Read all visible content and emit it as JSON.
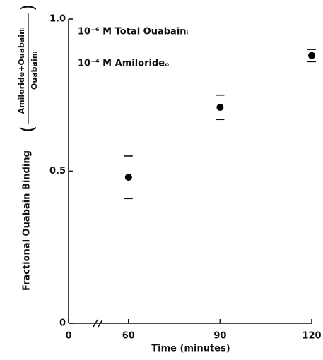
{
  "chart_data": {
    "type": "scatter",
    "xlabel": "Time (minutes)",
    "ylabel": "Fractional Ouabain Binding",
    "ylabel_numerator": "Amiloride+Ouabainᵢ",
    "ylabel_denominator": "Ouabainᵢ",
    "annotations": [
      "10⁻⁶ M Total Ouabainᵢ",
      "10⁻⁴ M Amilorideₒ"
    ],
    "x": [
      60,
      90,
      120
    ],
    "values": [
      0.48,
      0.71,
      0.88
    ],
    "errors": [
      0.07,
      0.04,
      0.02
    ],
    "color": "#000000",
    "xlim": [
      0,
      120
    ],
    "x_axis_break": [
      0,
      45
    ],
    "xticks": [
      0,
      60,
      90,
      120
    ],
    "ylim": [
      0,
      1
    ],
    "yticks": [
      0,
      0.5,
      {
        "value": 1,
        "label": "1.0"
      }
    ],
    "grid": false
  }
}
